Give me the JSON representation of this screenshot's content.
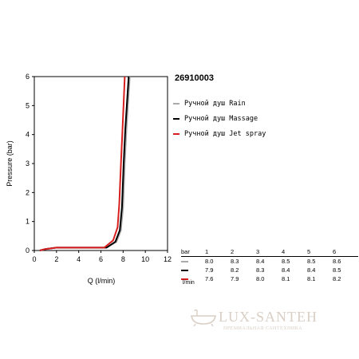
{
  "model_number": "26910003",
  "chart_data": {
    "type": "line",
    "xlabel": "Q (l/min)",
    "ylabel": "Pressure (bar)",
    "xlim": [
      0,
      12
    ],
    "ylim": [
      0,
      6
    ],
    "x_ticks": [
      0,
      2,
      4,
      6,
      8,
      10,
      12
    ],
    "y_ticks": [
      0,
      1,
      2,
      3,
      4,
      5,
      6
    ],
    "grid": false,
    "legend_position": "right",
    "series": [
      {
        "name": "Ручной душ Rain",
        "color": "#aaaaaa",
        "x": [
          0.5,
          1.0,
          2.0,
          6.5,
          7.4,
          7.8,
          8.0,
          8.15,
          8.3,
          8.45,
          8.6
        ],
        "y": [
          0.0,
          0.05,
          0.1,
          0.1,
          0.3,
          0.7,
          1.5,
          3.0,
          4.2,
          5.1,
          6.0
        ]
      },
      {
        "name": "Ручной душ Massage",
        "color": "#000000",
        "x": [
          0.5,
          1.0,
          2.0,
          6.5,
          7.3,
          7.7,
          7.9,
          8.05,
          8.2,
          8.35,
          8.5
        ],
        "y": [
          0.0,
          0.05,
          0.1,
          0.1,
          0.3,
          0.7,
          1.5,
          3.0,
          4.2,
          5.1,
          6.0
        ]
      },
      {
        "name": "Ручной душ Jet spray",
        "color": "#d81e1e",
        "x": [
          0.5,
          1.0,
          2.0,
          6.3,
          7.1,
          7.5,
          7.65,
          7.8,
          7.95,
          8.05,
          8.15
        ],
        "y": [
          0.0,
          0.05,
          0.1,
          0.1,
          0.35,
          0.8,
          1.6,
          3.0,
          4.2,
          5.1,
          6.0
        ]
      }
    ],
    "flow_table": {
      "header_label": "bar",
      "unit_label": "l/min",
      "pressures": [
        "1",
        "2",
        "3",
        "4",
        "5",
        "6"
      ],
      "rows": [
        {
          "color": "#aaaaaa",
          "values": [
            "8.0",
            "8.3",
            "8.4",
            "8.5",
            "8.5",
            "8.6"
          ]
        },
        {
          "color": "#000000",
          "values": [
            "7.9",
            "8.2",
            "8.3",
            "8.4",
            "8.4",
            "8.5"
          ]
        },
        {
          "color": "#d81e1e",
          "values": [
            "7.6",
            "7.9",
            "8.0",
            "8.1",
            "8.1",
            "8.2"
          ]
        }
      ]
    }
  },
  "watermark": {
    "text": "LUX-SANTEH",
    "subtext": "ПРЕМИАЛЬНАЯ САНТЕХНИКА"
  }
}
